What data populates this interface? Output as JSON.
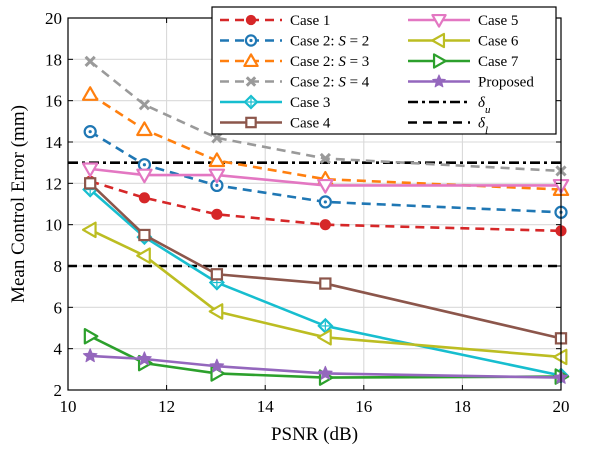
{
  "chart_data": {
    "type": "line",
    "xlabel": "PSNR (dB)",
    "ylabel": "Mean Control Error (mm)",
    "xlim": [
      10,
      20
    ],
    "ylim": [
      2,
      20
    ],
    "xticks": [
      10,
      12,
      14,
      16,
      18,
      20
    ],
    "yticks": [
      2,
      4,
      6,
      8,
      10,
      12,
      14,
      16,
      18,
      20
    ],
    "grid": true,
    "legend_position": "top-right",
    "x": [
      10.45,
      11.55,
      13.02,
      15.22,
      20.0
    ],
    "series": [
      {
        "name": "Case 1",
        "color": "#d62728",
        "dash": "dashed",
        "marker": "filled-circle",
        "values": [
          12.1,
          11.3,
          10.5,
          10.0,
          9.7
        ]
      },
      {
        "name_parts": [
          "Case 2: ",
          "S",
          " = 2"
        ],
        "color": "#1f77b4",
        "dash": "dashed",
        "marker": "circle-dot",
        "values": [
          14.5,
          12.9,
          11.9,
          11.1,
          10.6
        ]
      },
      {
        "name_parts": [
          "Case 2: ",
          "S",
          " = 3"
        ],
        "color": "#ff7f0e",
        "dash": "dashed",
        "marker": "triangle-up",
        "values": [
          16.3,
          14.6,
          13.1,
          12.2,
          11.7
        ]
      },
      {
        "name_parts": [
          "Case 2: ",
          "S",
          " = 4"
        ],
        "color": "#9a9a9a",
        "dash": "dashed",
        "marker": "x",
        "values": [
          17.9,
          15.8,
          14.2,
          13.2,
          12.6
        ]
      },
      {
        "name": "Case 3",
        "color": "#17becf",
        "dash": "solid",
        "marker": "diamond",
        "values": [
          11.7,
          9.4,
          7.2,
          5.1,
          2.7
        ]
      },
      {
        "name": "Case 4",
        "color": "#8c564b",
        "dash": "solid",
        "marker": "square",
        "values": [
          12.0,
          9.5,
          7.6,
          7.15,
          4.5
        ]
      },
      {
        "name": "Case 5",
        "color": "#e377c2",
        "dash": "solid",
        "marker": "triangle-down",
        "values": [
          12.7,
          12.4,
          12.4,
          11.9,
          11.9
        ]
      },
      {
        "name": "Case 6",
        "color": "#bcbd22",
        "dash": "solid",
        "marker": "triangle-left",
        "values": [
          9.75,
          8.5,
          5.8,
          4.55,
          3.6
        ]
      },
      {
        "name": "Case 7",
        "color": "#2ca02c",
        "dash": "solid",
        "marker": "triangle-right",
        "values": [
          4.6,
          3.3,
          2.8,
          2.6,
          2.65
        ]
      },
      {
        "name": "Proposed",
        "color": "#9467bd",
        "dash": "solid",
        "marker": "star",
        "values": [
          3.65,
          3.5,
          3.15,
          2.8,
          2.6
        ]
      }
    ],
    "thresholds": [
      {
        "name_base": "δ",
        "name_sub": "u",
        "value": 13.0,
        "style": "dashdot",
        "color": "#000000"
      },
      {
        "name_base": "δ",
        "name_sub": "l",
        "value": 8.0,
        "style": "dashed",
        "color": "#000000"
      }
    ]
  }
}
